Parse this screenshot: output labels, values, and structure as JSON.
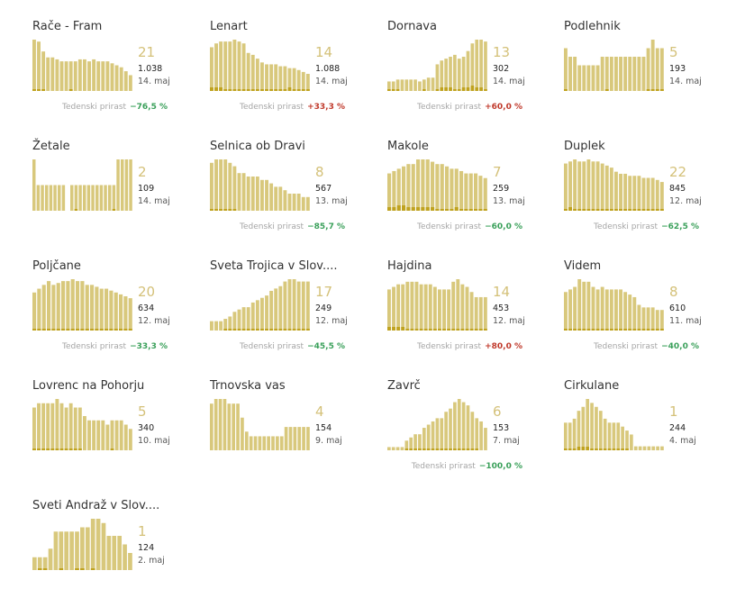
{
  "colors": {
    "bar": "#d8c87c",
    "highlight": "#bfa21e",
    "count": "#d4c179",
    "negative": "#3aa05a",
    "positive": "#c0392b"
  },
  "growth_label": "Tedenski prirast",
  "chart_data": [
    {
      "type": "bar",
      "title": "Rače - Fram",
      "count": "21",
      "total": "1.038",
      "date": "14. maj",
      "growth": "−76,5 %",
      "growth_sign": "neg",
      "values": [
        26,
        25,
        20,
        17,
        17,
        16,
        15,
        15,
        15,
        15,
        16,
        16,
        15,
        16,
        15,
        15,
        15,
        14,
        13,
        12,
        10,
        8
      ],
      "highlight": [
        1,
        1,
        1,
        0,
        0,
        0,
        0,
        0,
        1,
        0,
        0,
        0,
        0,
        0,
        0,
        0,
        0,
        0,
        0,
        0,
        0,
        0
      ]
    },
    {
      "type": "bar",
      "title": "Lenart",
      "count": "14",
      "total": "1.088",
      "date": "14. maj",
      "growth": "+33,3 %",
      "growth_sign": "pos",
      "values": [
        23,
        25,
        26,
        26,
        26,
        27,
        26,
        25,
        20,
        19,
        17,
        15,
        14,
        14,
        14,
        13,
        13,
        12,
        12,
        11,
        10,
        9
      ],
      "highlight": [
        2,
        2,
        2,
        1,
        1,
        1,
        1,
        1,
        1,
        1,
        1,
        1,
        1,
        1,
        1,
        1,
        1,
        2,
        1,
        1,
        1,
        1
      ]
    },
    {
      "type": "bar",
      "title": "Dornava",
      "count": "13",
      "total": "302",
      "date": "14. maj",
      "growth": "+60,0 %",
      "growth_sign": "pos",
      "values": [
        5,
        5,
        6,
        6,
        6,
        6,
        6,
        5,
        6,
        7,
        7,
        14,
        16,
        17,
        18,
        19,
        17,
        18,
        21,
        25,
        27,
        27,
        26
      ],
      "highlight": [
        1,
        1,
        1,
        0,
        0,
        0,
        0,
        0,
        1,
        0,
        0,
        1,
        2,
        2,
        2,
        1,
        1,
        2,
        2,
        3,
        2,
        2,
        1
      ]
    },
    {
      "type": "bar",
      "title": "Podlehnik",
      "count": "5",
      "total": "193",
      "date": "14. maj",
      "growth": "",
      "growth_sign": "neg",
      "values": [
        5,
        4,
        4,
        3,
        3,
        3,
        3,
        3,
        4,
        4,
        4,
        4,
        4,
        4,
        4,
        4,
        4,
        4,
        5,
        6,
        5,
        5
      ],
      "highlight": [
        1,
        0,
        0,
        0,
        0,
        0,
        0,
        0,
        0,
        1,
        0,
        0,
        0,
        0,
        0,
        0,
        0,
        0,
        1,
        1,
        1,
        1
      ]
    },
    {
      "type": "bar",
      "title": "Žetale",
      "count": "2",
      "total": "109",
      "date": "14. maj",
      "growth": "",
      "growth_sign": "neg",
      "values": [
        2,
        1,
        1,
        1,
        1,
        1,
        1,
        1,
        1,
        1,
        1,
        1,
        1,
        1,
        1,
        1,
        1,
        1,
        1,
        1,
        2,
        2,
        2,
        2
      ],
      "highlight": [
        0,
        0,
        0,
        0,
        0,
        0,
        0,
        0,
        0,
        0,
        1,
        0,
        0,
        0,
        0,
        0,
        0,
        0,
        0,
        1,
        0,
        0,
        0,
        0
      ],
      "gaps": [
        8
      ]
    },
    {
      "type": "bar",
      "title": "Selnica ob Dravi",
      "count": "8",
      "total": "567",
      "date": "13. maj",
      "growth": "−85,7 %",
      "growth_sign": "neg",
      "values": [
        14,
        15,
        15,
        15,
        14,
        13,
        11,
        11,
        10,
        10,
        10,
        9,
        9,
        8,
        7,
        7,
        6,
        5,
        5,
        5,
        4,
        4
      ],
      "highlight": [
        1,
        1,
        1,
        1,
        1,
        1,
        0,
        0,
        0,
        0,
        0,
        0,
        0,
        0,
        0,
        0,
        0,
        0,
        0,
        0,
        0,
        0
      ]
    },
    {
      "type": "bar",
      "title": "Makole",
      "count": "7",
      "total": "259",
      "date": "13. maj",
      "growth": "−60,0 %",
      "growth_sign": "neg",
      "values": [
        16,
        17,
        18,
        19,
        20,
        20,
        22,
        22,
        22,
        21,
        20,
        20,
        19,
        18,
        18,
        17,
        16,
        16,
        16,
        15,
        14
      ],
      "highlight": [
        2,
        2,
        3,
        3,
        2,
        2,
        2,
        2,
        2,
        2,
        1,
        1,
        1,
        1,
        2,
        1,
        1,
        1,
        1,
        1,
        1
      ]
    },
    {
      "type": "bar",
      "title": "Duplek",
      "count": "22",
      "total": "845",
      "date": "12. maj",
      "growth": "−62,5 %",
      "growth_sign": "neg",
      "values": [
        23,
        24,
        25,
        24,
        24,
        25,
        24,
        24,
        23,
        22,
        21,
        19,
        18,
        18,
        17,
        17,
        17,
        16,
        16,
        16,
        15,
        14
      ],
      "highlight": [
        1,
        2,
        1,
        1,
        1,
        1,
        1,
        1,
        1,
        1,
        1,
        1,
        1,
        1,
        1,
        1,
        1,
        1,
        1,
        1,
        1,
        1
      ]
    },
    {
      "type": "bar",
      "title": "Poljčane",
      "count": "20",
      "total": "634",
      "date": "12. maj",
      "growth": "−33,3 %",
      "growth_sign": "neg",
      "values": [
        20,
        22,
        24,
        26,
        24,
        25,
        26,
        26,
        27,
        26,
        26,
        24,
        24,
        23,
        22,
        22,
        21,
        20,
        19,
        18,
        17
      ],
      "highlight": [
        1,
        1,
        1,
        1,
        1,
        1,
        1,
        1,
        1,
        1,
        1,
        1,
        1,
        1,
        1,
        1,
        1,
        1,
        1,
        1,
        1
      ]
    },
    {
      "type": "bar",
      "title": "Sveta Trojica v Slov....",
      "count": "17",
      "total": "249",
      "date": "12. maj",
      "growth": "−45,5 %",
      "growth_sign": "neg",
      "values": [
        4,
        4,
        4,
        5,
        6,
        8,
        9,
        10,
        10,
        12,
        13,
        14,
        15,
        17,
        18,
        19,
        21,
        22,
        22,
        21,
        21,
        21
      ],
      "highlight": [
        0,
        0,
        0,
        1,
        1,
        1,
        1,
        1,
        1,
        1,
        1,
        1,
        1,
        1,
        1,
        1,
        1,
        1,
        1,
        1,
        1,
        1
      ]
    },
    {
      "type": "bar",
      "title": "Hajdina",
      "count": "14",
      "total": "453",
      "date": "12. maj",
      "growth": "+80,0 %",
      "growth_sign": "pos",
      "values": [
        16,
        17,
        18,
        18,
        19,
        19,
        19,
        18,
        18,
        18,
        17,
        16,
        16,
        16,
        19,
        20,
        18,
        17,
        15,
        13,
        13,
        13
      ],
      "highlight": [
        2,
        2,
        2,
        2,
        1,
        1,
        1,
        1,
        1,
        1,
        1,
        1,
        1,
        1,
        1,
        1,
        1,
        1,
        1,
        1,
        1,
        1
      ]
    },
    {
      "type": "bar",
      "title": "Videm",
      "count": "8",
      "total": "610",
      "date": "11. maj",
      "growth": "−40,0 %",
      "growth_sign": "neg",
      "values": [
        15,
        16,
        17,
        20,
        19,
        19,
        17,
        16,
        17,
        16,
        16,
        16,
        16,
        15,
        14,
        13,
        10,
        9,
        9,
        9,
        8,
        8
      ],
      "highlight": [
        1,
        1,
        1,
        1,
        1,
        1,
        1,
        1,
        1,
        1,
        1,
        1,
        1,
        1,
        1,
        1,
        1,
        1,
        1,
        1,
        1,
        1
      ]
    },
    {
      "type": "bar",
      "title": "Lovrenc na Pohorju",
      "count": "5",
      "total": "340",
      "date": "10. maj",
      "growth": "",
      "growth_sign": "neg",
      "values": [
        10,
        11,
        11,
        11,
        11,
        12,
        11,
        10,
        11,
        10,
        10,
        8,
        7,
        7,
        7,
        7,
        6,
        7,
        7,
        7,
        6,
        5
      ],
      "highlight": [
        1,
        1,
        1,
        1,
        1,
        1,
        1,
        1,
        1,
        1,
        1,
        0,
        0,
        0,
        0,
        0,
        0,
        1,
        0,
        0,
        0,
        0
      ]
    },
    {
      "type": "bar",
      "title": "Trnovska vas",
      "count": "4",
      "total": "154",
      "date": "9. maj",
      "growth": "",
      "growth_sign": "neg",
      "values": [
        10,
        11,
        11,
        11,
        10,
        10,
        10,
        7,
        4,
        3,
        3,
        3,
        3,
        3,
        3,
        3,
        3,
        5,
        5,
        5,
        5,
        5,
        5
      ],
      "highlight": [
        0,
        0,
        0,
        0,
        0,
        0,
        0,
        0,
        0,
        0,
        0,
        0,
        0,
        0,
        0,
        0,
        0,
        0,
        0,
        0,
        0,
        0,
        0
      ]
    },
    {
      "type": "bar",
      "title": "Zavrč",
      "count": "6",
      "total": "153",
      "date": "7. maj",
      "growth": "−100,0 %",
      "growth_sign": "neg",
      "values": [
        1,
        1,
        1,
        1,
        3,
        4,
        5,
        5,
        7,
        8,
        9,
        10,
        10,
        12,
        13,
        15,
        16,
        15,
        14,
        12,
        10,
        9,
        7
      ],
      "highlight": [
        0,
        0,
        0,
        0,
        1,
        1,
        1,
        1,
        1,
        1,
        1,
        1,
        1,
        1,
        1,
        1,
        1,
        1,
        1,
        1,
        1,
        0,
        0
      ]
    },
    {
      "type": "bar",
      "title": "Cirkulane",
      "count": "1",
      "total": "244",
      "date": "4. maj",
      "growth": "",
      "growth_sign": "neg",
      "values": [
        7,
        7,
        8,
        10,
        11,
        13,
        12,
        11,
        10,
        8,
        7,
        7,
        7,
        6,
        5,
        4,
        1,
        1,
        1,
        1,
        1,
        1,
        1
      ],
      "highlight": [
        1,
        1,
        1,
        2,
        2,
        2,
        1,
        1,
        1,
        1,
        1,
        1,
        1,
        1,
        1,
        0,
        0,
        0,
        0,
        0,
        0,
        0,
        0
      ]
    },
    {
      "type": "bar",
      "title": "Sveti Andraž v Slov....",
      "count": "1",
      "total": "124",
      "date": "2. maj",
      "growth": "",
      "growth_sign": "neg",
      "values": [
        3,
        3,
        3,
        5,
        9,
        9,
        9,
        9,
        9,
        10,
        10,
        12,
        12,
        11,
        8,
        8,
        8,
        6,
        4
      ],
      "highlight": [
        0,
        1,
        1,
        0,
        0,
        1,
        0,
        0,
        1,
        1,
        0,
        1,
        0,
        0,
        0,
        0,
        0,
        0,
        0
      ]
    }
  ]
}
